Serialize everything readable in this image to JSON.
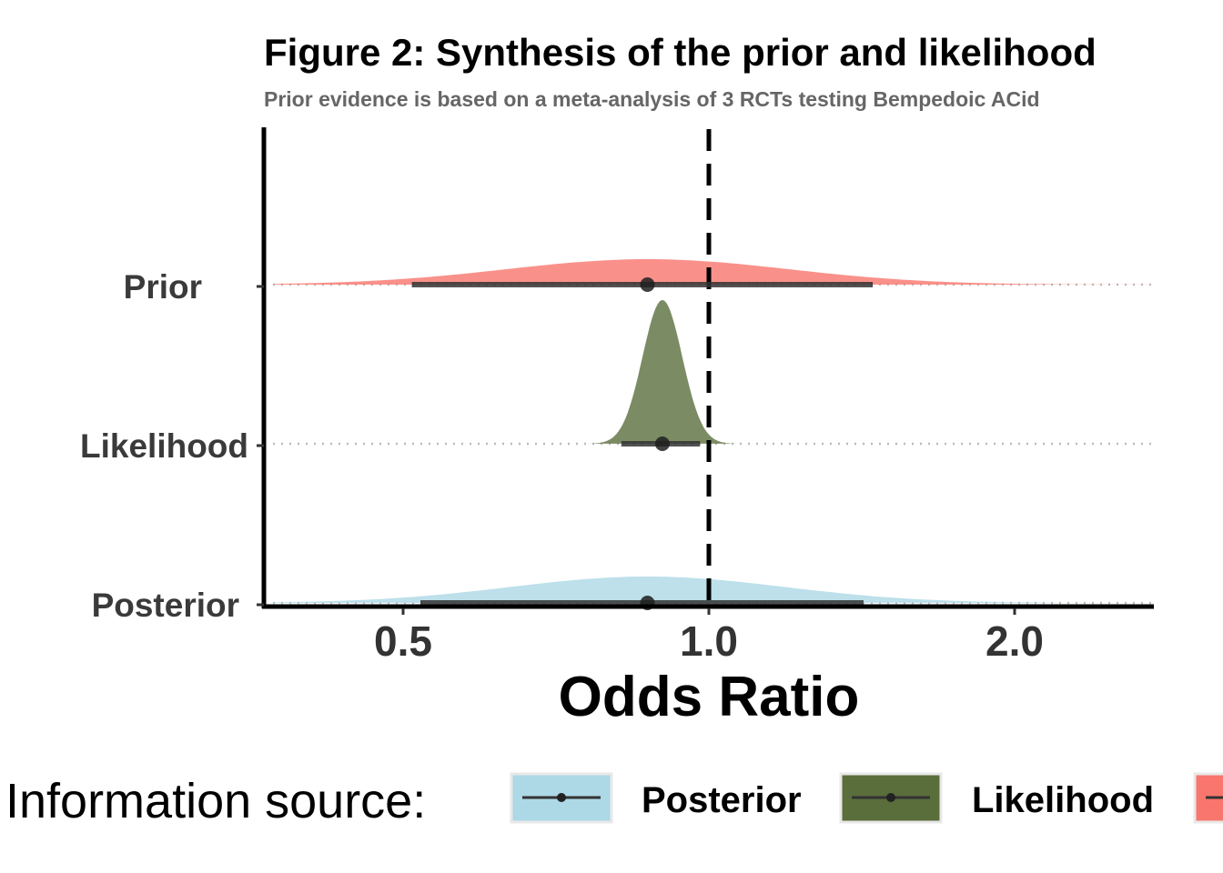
{
  "chart_data": {
    "type": "density",
    "title": "Figure 2: Synthesis of the prior and likelihood",
    "subtitle": "Prior evidence is based on a meta-analysis of 3 RCTs testing Bempedoic ACid",
    "xlabel": "Odds Ratio",
    "ylabel": "",
    "x_scale": "log",
    "x_ticks": [
      0.5,
      1.0,
      2.0
    ],
    "x_tick_labels": [
      "0.5",
      "1.0",
      "2.0"
    ],
    "xlim": [
      0.35,
      2.75
    ],
    "reference_line": 1.0,
    "grid": "dotted horizontal lines at each category",
    "categories": [
      "Prior",
      "Likelihood",
      "Posterior"
    ],
    "series": [
      {
        "name": "Prior",
        "color": "#f8766d",
        "point_estimate": 0.87,
        "interval": [
          0.51,
          1.45
        ],
        "density_peak": 0.87,
        "density_sd_log": 0.32
      },
      {
        "name": "Likelihood",
        "color": "#5a6e3c",
        "point_estimate": 0.9,
        "interval": [
          0.82,
          0.98
        ],
        "density_peak": 0.9,
        "density_sd_log": 0.045
      },
      {
        "name": "Posterior",
        "color": "#add8e6",
        "point_estimate": 0.87,
        "interval": [
          0.52,
          1.42
        ],
        "density_peak": 0.87,
        "density_sd_log": 0.31
      }
    ],
    "legend": {
      "title": "Information source:",
      "position": "bottom",
      "entries": [
        {
          "label": "Posterior",
          "color": "#add8e6"
        },
        {
          "label": "Likelihood",
          "color": "#5a6e3c"
        },
        {
          "label": "Prior",
          "color": "#f8766d"
        }
      ]
    }
  }
}
